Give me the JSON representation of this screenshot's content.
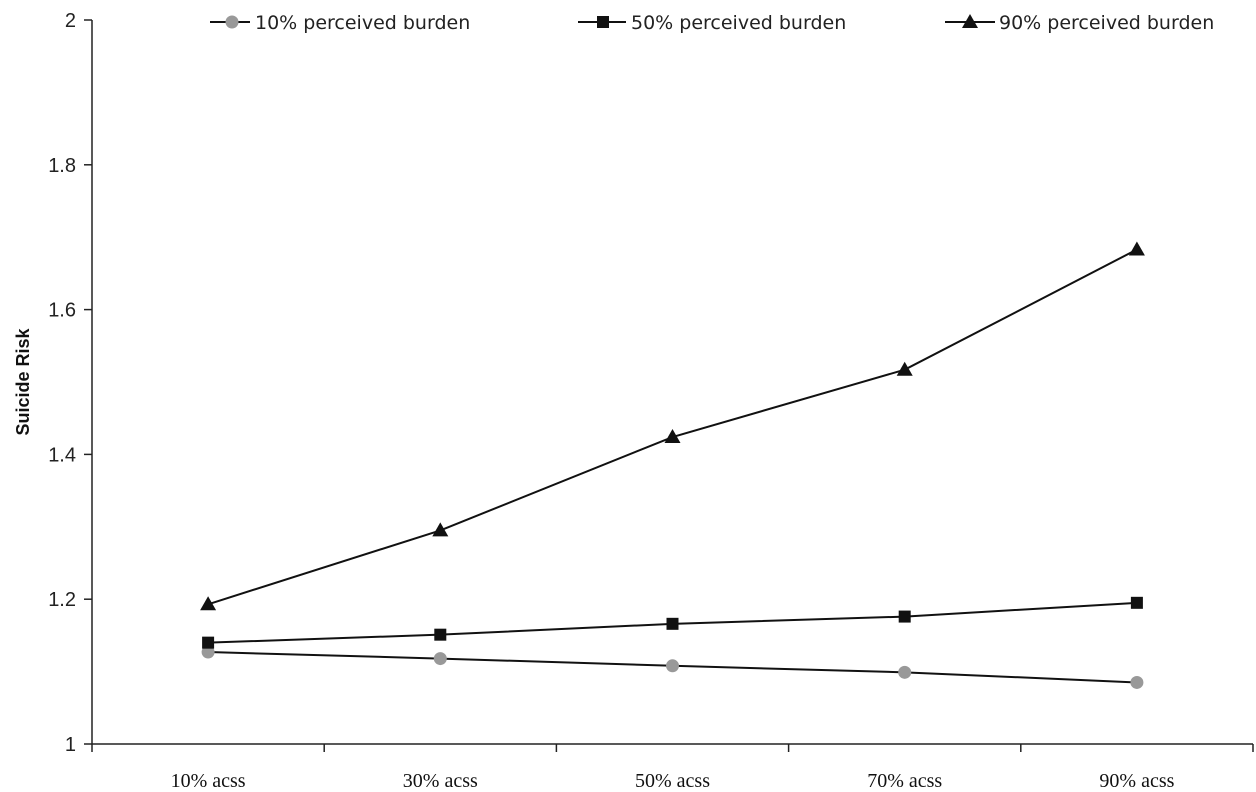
{
  "chart_data": {
    "type": "line",
    "categories": [
      "10% acss",
      "30% acss",
      "50% acss",
      "70% acss",
      "90% acss"
    ],
    "series": [
      {
        "name": "10% perceived burden",
        "values": [
          1.127,
          1.118,
          1.108,
          1.099,
          1.085
        ],
        "marker": "circle",
        "color": "#999999"
      },
      {
        "name": "50% perceived burden",
        "values": [
          1.14,
          1.151,
          1.166,
          1.176,
          1.195
        ],
        "marker": "square",
        "color": "#111111"
      },
      {
        "name": "90% perceived burden",
        "values": [
          1.193,
          1.295,
          1.424,
          1.517,
          1.683
        ],
        "marker": "triangle",
        "color": "#111111"
      }
    ],
    "yticks": [
      "1",
      "1.2",
      "1.4",
      "1.6",
      "1.8",
      "2"
    ],
    "ylabel": "Suicide Risk",
    "xlabel": "",
    "ylim": [
      1,
      2
    ],
    "grid": false,
    "legend_position": "top"
  }
}
